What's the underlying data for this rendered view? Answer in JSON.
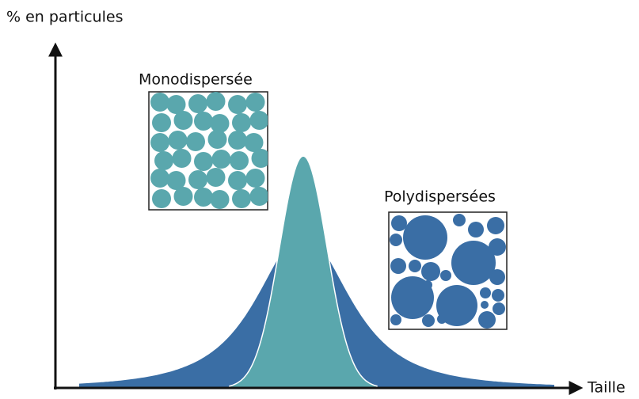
{
  "axes": {
    "y_label": "% en particules",
    "x_label": "Taille"
  },
  "insets": [
    {
      "label": "Monodispersée"
    },
    {
      "label": "Polydispersées"
    }
  ]
}
